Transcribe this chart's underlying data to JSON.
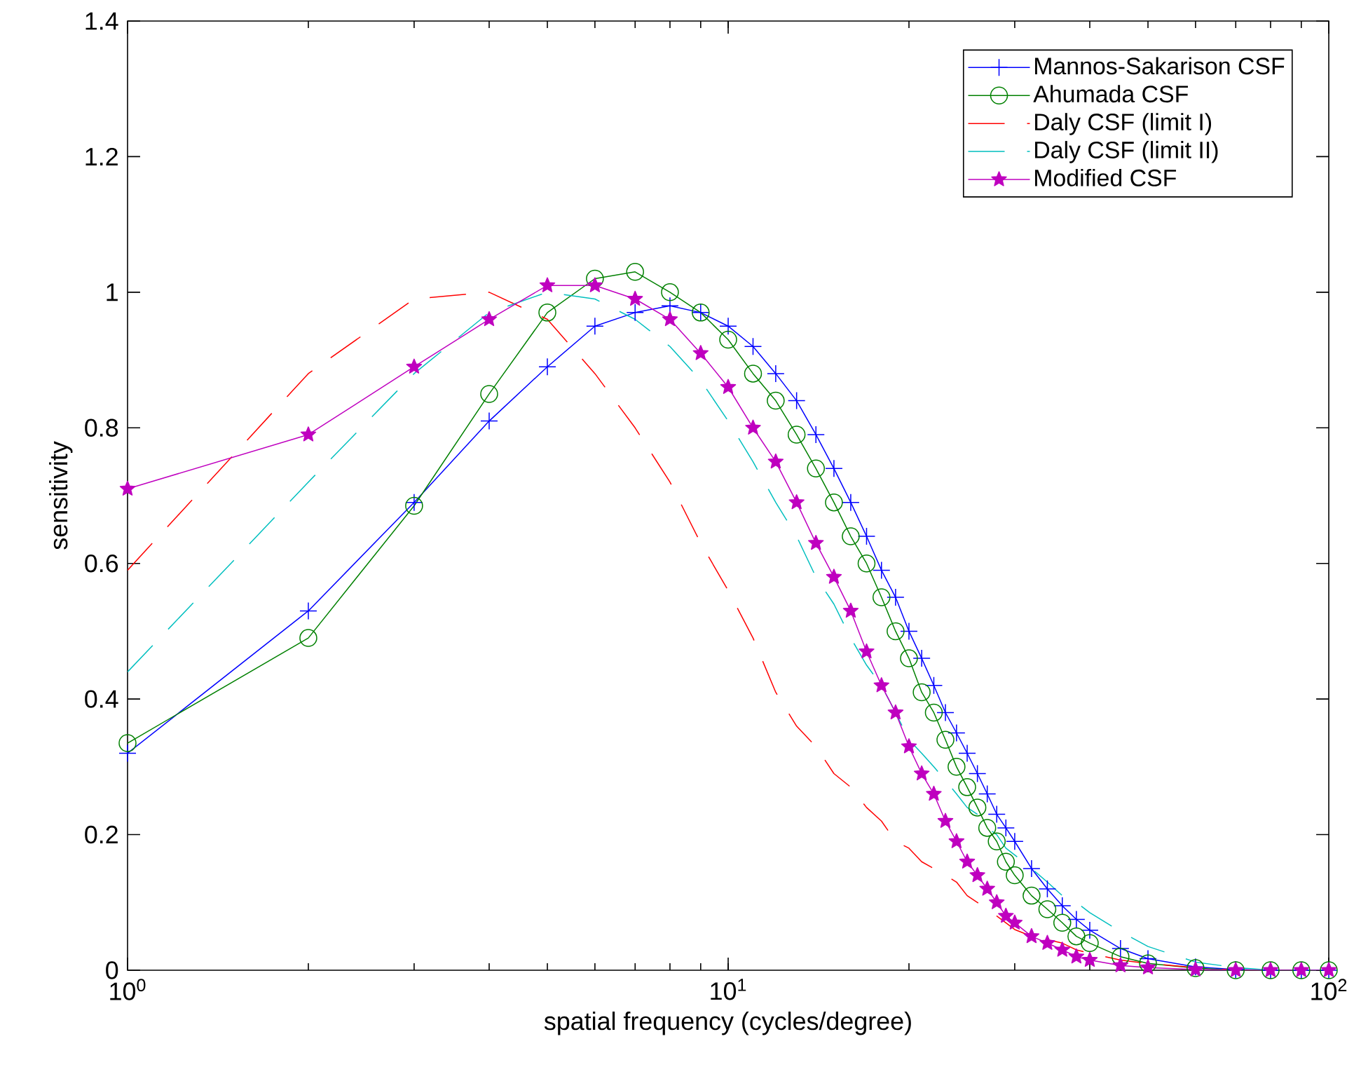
{
  "chart_data": {
    "type": "line",
    "xlabel": "spatial frequency (cycles/degree)",
    "ylabel": "sensitivity",
    "log": "x",
    "legend": "top right",
    "xlim": [
      1,
      100
    ],
    "ylim": [
      0,
      1.4
    ],
    "xticks": [
      {
        "value": 1,
        "label": "10$^{0}$"
      },
      {
        "value": 10,
        "label": "10$^{1}$"
      },
      {
        "value": 100,
        "label": "10$^{2}$"
      }
    ],
    "yticks": [
      0,
      0.2,
      0.4,
      0.6,
      0.8,
      1,
      1.2,
      1.4
    ],
    "x": [
      1,
      2,
      3,
      4,
      5,
      6,
      7,
      8,
      9,
      10,
      11,
      12,
      13,
      14,
      15,
      16,
      17,
      18,
      19,
      20,
      21,
      22,
      23,
      24,
      25,
      26,
      27,
      28,
      29,
      30,
      32,
      34,
      36,
      38,
      40,
      45,
      50,
      60,
      70,
      80,
      90,
      100
    ],
    "series": [
      {
        "name": "Mannos-Sakarison CSF",
        "color": "#0000ff",
        "marker": "cross",
        "line_style": "solid",
        "values": [
          0.32,
          0.53,
          0.69,
          0.81,
          0.89,
          0.95,
          0.97,
          0.98,
          0.97,
          0.95,
          0.92,
          0.88,
          0.84,
          0.79,
          0.74,
          0.69,
          0.64,
          0.59,
          0.55,
          0.5,
          0.46,
          0.42,
          0.38,
          0.35,
          0.32,
          0.29,
          0.26,
          0.23,
          0.21,
          0.19,
          0.15,
          0.12,
          0.095,
          0.075,
          0.059,
          0.032,
          0.017,
          0.005,
          0.001,
          0,
          0,
          0
        ]
      },
      {
        "name": "Ahumada CSF",
        "color": "#008000",
        "marker": "circle",
        "line_style": "solid",
        "values": [
          0.335,
          0.49,
          0.685,
          0.85,
          0.97,
          1.02,
          1.03,
          1.0,
          0.97,
          0.93,
          0.88,
          0.84,
          0.79,
          0.74,
          0.69,
          0.64,
          0.6,
          0.55,
          0.5,
          0.46,
          0.41,
          0.38,
          0.34,
          0.3,
          0.27,
          0.24,
          0.21,
          0.19,
          0.16,
          0.14,
          0.11,
          0.09,
          0.07,
          0.05,
          0.04,
          0.02,
          0.01,
          0.003,
          0,
          0,
          0,
          0
        ]
      },
      {
        "name": "Daly CSF (limit I)",
        "color": "#ff0000",
        "marker": "none",
        "line_style": "dashed",
        "values": [
          0.59,
          0.88,
          0.99,
          1.0,
          0.96,
          0.88,
          0.8,
          0.72,
          0.63,
          0.56,
          0.49,
          0.41,
          0.36,
          0.33,
          0.29,
          0.27,
          0.24,
          0.22,
          0.19,
          0.18,
          0.16,
          0.15,
          0.14,
          0.13,
          0.11,
          0.1,
          0.09,
          0.08,
          0.07,
          0.06,
          0.05,
          0.045,
          0.04,
          0.03,
          0.025,
          0.015,
          0.01,
          0.004,
          0,
          0,
          null,
          null
        ]
      },
      {
        "name": "Daly CSF (limit II)",
        "color": "#00bfbf",
        "marker": "none",
        "line_style": "dashed",
        "values": [
          0.44,
          0.72,
          0.88,
          0.97,
          1.0,
          0.99,
          0.96,
          0.92,
          0.87,
          0.81,
          0.75,
          0.69,
          0.64,
          0.58,
          0.54,
          0.49,
          0.45,
          0.42,
          0.38,
          0.34,
          0.32,
          0.3,
          0.28,
          0.26,
          0.24,
          0.23,
          0.21,
          0.2,
          0.18,
          0.17,
          0.15,
          0.13,
          0.11,
          0.1,
          0.085,
          0.057,
          0.035,
          0.012,
          0.004,
          0,
          0,
          0
        ]
      },
      {
        "name": "Modified CSF",
        "color": "#bf00bf",
        "marker": "star",
        "line_style": "solid",
        "values": [
          0.71,
          0.79,
          0.89,
          0.96,
          1.01,
          1.01,
          0.99,
          0.96,
          0.91,
          0.86,
          0.8,
          0.75,
          0.69,
          0.63,
          0.58,
          0.53,
          0.47,
          0.42,
          0.38,
          0.33,
          0.29,
          0.26,
          0.22,
          0.19,
          0.16,
          0.14,
          0.12,
          0.1,
          0.08,
          0.07,
          0.05,
          0.04,
          0.03,
          0.02,
          0.015,
          0.007,
          0.004,
          0.001,
          0,
          0,
          0,
          0
        ]
      }
    ]
  }
}
